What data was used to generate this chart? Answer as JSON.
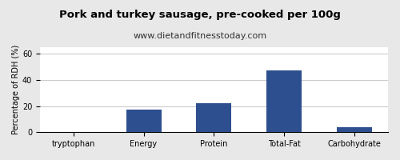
{
  "title": "Pork and turkey sausage, pre-cooked per 100g",
  "subtitle": "www.dietandfitnesstoday.com",
  "categories": [
    "tryptophan",
    "Energy",
    "Protein",
    "Total-Fat",
    "Carbohydrate"
  ],
  "values": [
    0.3,
    17,
    22,
    47,
    4
  ],
  "bar_color": "#2e4f8f",
  "ylabel": "Percentage of RDH (%)",
  "ylim": [
    0,
    65
  ],
  "yticks": [
    0,
    20,
    40,
    60
  ],
  "background_color": "#e8e8e8",
  "plot_bg_color": "#ffffff",
  "title_fontsize": 9.5,
  "subtitle_fontsize": 8,
  "ylabel_fontsize": 7,
  "tick_fontsize": 7,
  "grid_color": "#cccccc"
}
